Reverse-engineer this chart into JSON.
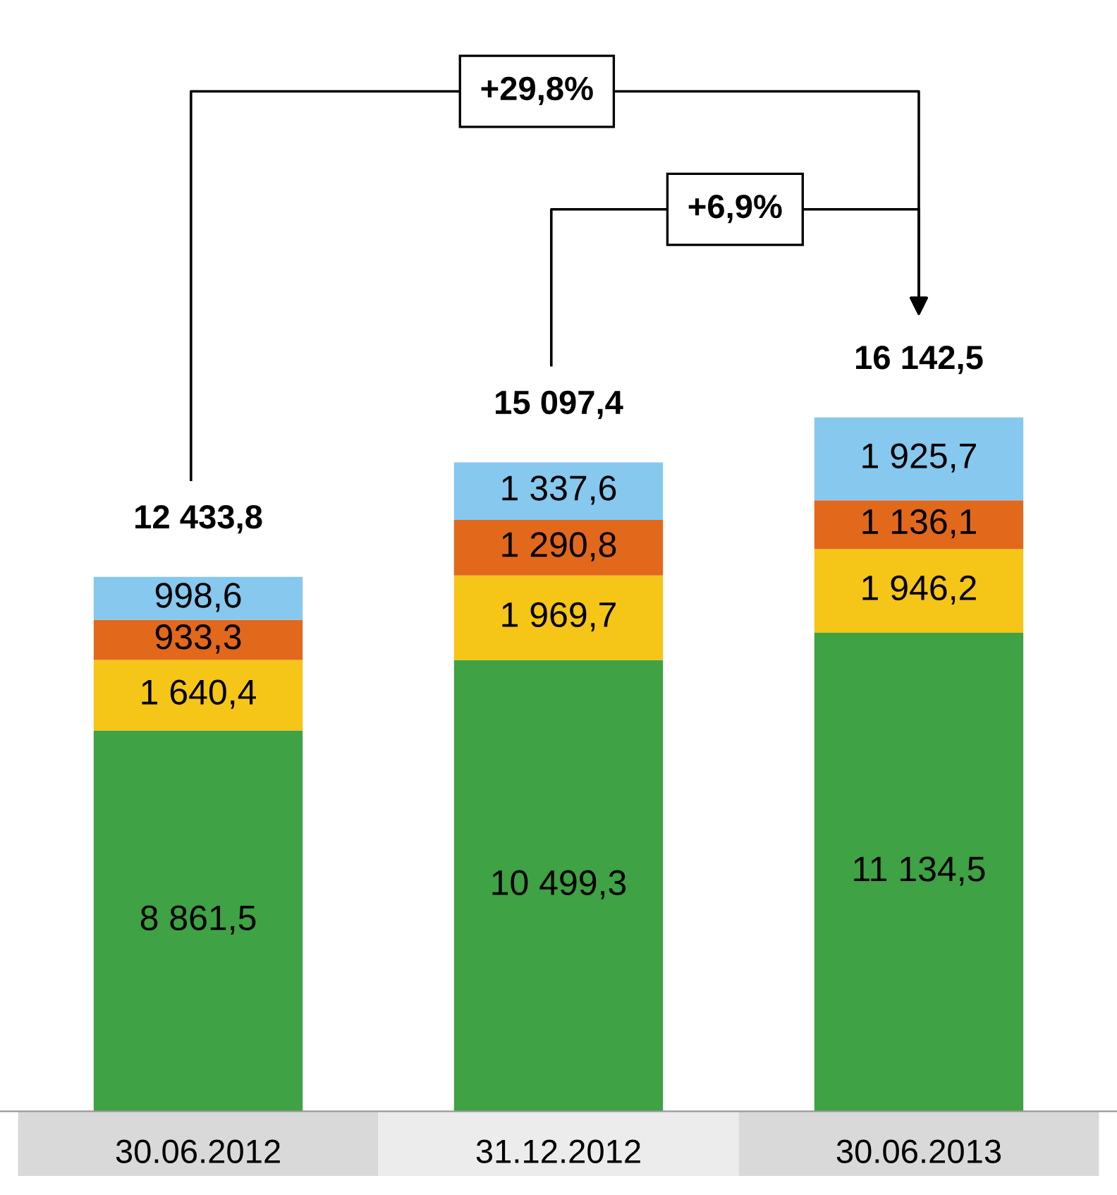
{
  "chart_data": {
    "type": "bar",
    "stacked": true,
    "categories": [
      "30.06.2012",
      "31.12.2012",
      "30.06.2013"
    ],
    "series": [
      {
        "color": "#3fa244",
        "values": [
          8861.5,
          10499.3,
          11134.5
        ],
        "value_labels": [
          "8 861,5",
          "10 499,3",
          "11 134,5"
        ]
      },
      {
        "color": "#f5c518",
        "values": [
          1640.4,
          1969.7,
          1946.2
        ],
        "value_labels": [
          "1 640,4",
          "1 969,7",
          "1 946,2"
        ]
      },
      {
        "color": "#e2681c",
        "values": [
          933.3,
          1290.8,
          1136.1
        ],
        "value_labels": [
          "933,3",
          "1 290,8",
          "1 136,1"
        ]
      },
      {
        "color": "#86c8ee",
        "values": [
          998.6,
          1337.6,
          1925.7
        ],
        "value_labels": [
          "998,6",
          "1 337,6",
          "1 925,7"
        ]
      }
    ],
    "totals": [
      "12 433,8",
      "15 097,4",
      "16 142,5"
    ],
    "annotations": [
      "+29,8%",
      "+6,9%"
    ],
    "grid": false
  }
}
